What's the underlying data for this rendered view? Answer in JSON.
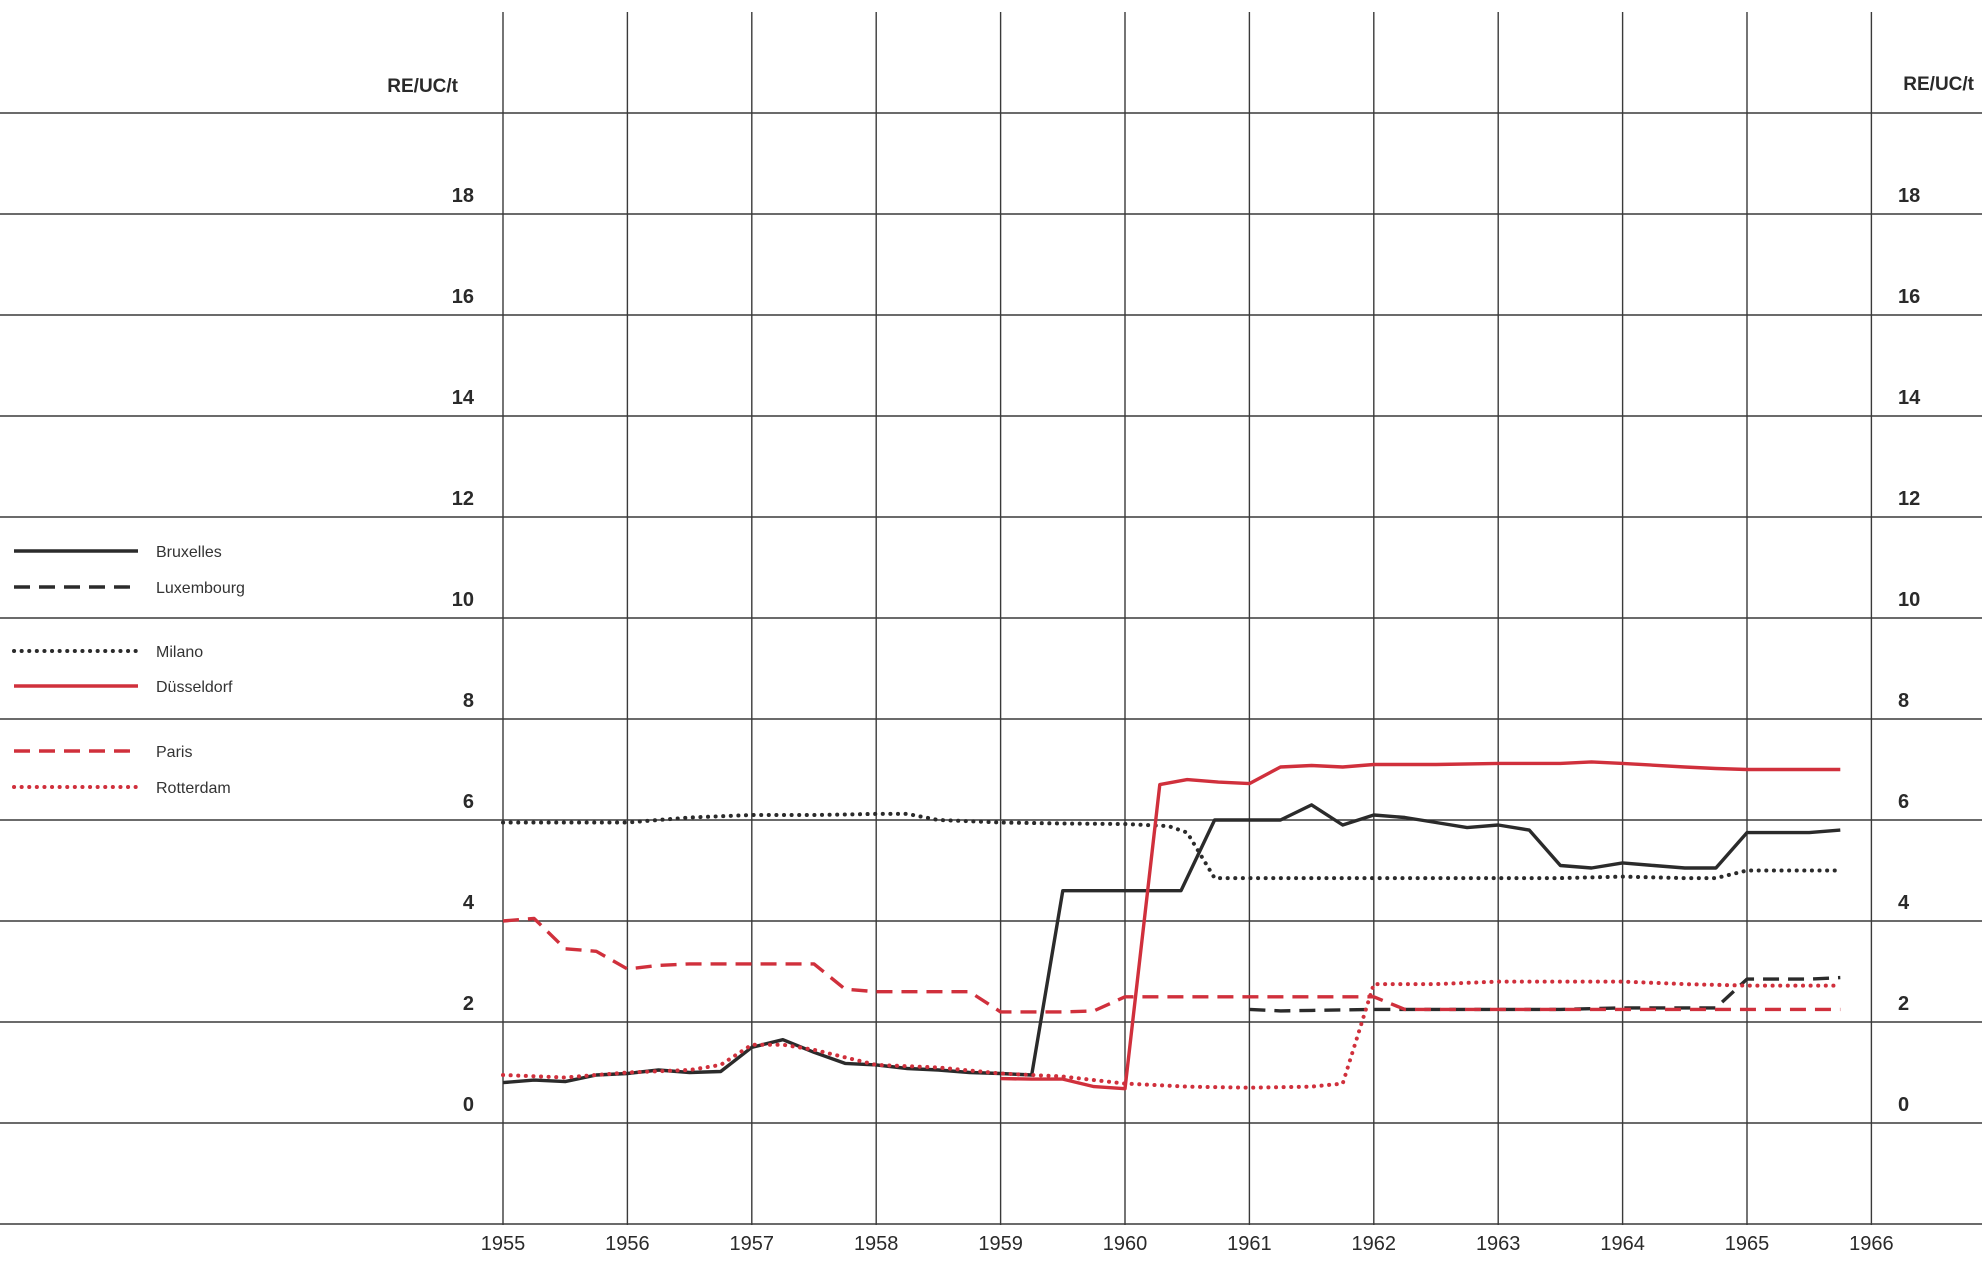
{
  "chart_data": {
    "type": "line",
    "title": "",
    "xlabel": "",
    "ylabel": "RE/UC/t",
    "ylabel_right": "RE/UC/t",
    "xlim": [
      1955,
      1966
    ],
    "ylim": [
      -2,
      20
    ],
    "x_ticks": [
      "1955",
      "1956",
      "1957",
      "1958",
      "1959",
      "1960",
      "1961",
      "1962",
      "1963",
      "1964",
      "1965",
      "1966"
    ],
    "y_ticks": [
      "0",
      "2",
      "4",
      "6",
      "8",
      "10",
      "12",
      "14",
      "16",
      "18"
    ],
    "grid": true,
    "legend_position": "left",
    "series": [
      {
        "name": "Bruxelles",
        "color": "#2b2b2b",
        "style": "solid",
        "points": [
          [
            1955.0,
            0.8
          ],
          [
            1955.25,
            0.85
          ],
          [
            1955.5,
            0.82
          ],
          [
            1955.75,
            0.95
          ],
          [
            1956.0,
            0.98
          ],
          [
            1956.25,
            1.05
          ],
          [
            1956.5,
            1.0
          ],
          [
            1956.75,
            1.02
          ],
          [
            1957.0,
            1.5
          ],
          [
            1957.25,
            1.65
          ],
          [
            1957.5,
            1.4
          ],
          [
            1957.75,
            1.18
          ],
          [
            1958.0,
            1.15
          ],
          [
            1958.25,
            1.08
          ],
          [
            1958.5,
            1.05
          ],
          [
            1958.75,
            1.0
          ],
          [
            1959.0,
            0.98
          ],
          [
            1959.25,
            0.95
          ],
          [
            1959.5,
            4.6
          ],
          [
            1959.75,
            4.6
          ],
          [
            1960.0,
            4.6
          ],
          [
            1960.45,
            4.6
          ],
          [
            1960.72,
            6.0
          ],
          [
            1961.0,
            6.0
          ],
          [
            1961.25,
            6.0
          ],
          [
            1961.5,
            6.3
          ],
          [
            1961.75,
            5.9
          ],
          [
            1962.0,
            6.1
          ],
          [
            1962.25,
            6.05
          ],
          [
            1962.5,
            5.95
          ],
          [
            1962.75,
            5.85
          ],
          [
            1963.0,
            5.9
          ],
          [
            1963.25,
            5.8
          ],
          [
            1963.5,
            5.1
          ],
          [
            1963.75,
            5.05
          ],
          [
            1964.0,
            5.15
          ],
          [
            1964.25,
            5.1
          ],
          [
            1964.5,
            5.05
          ],
          [
            1964.75,
            5.05
          ],
          [
            1965.0,
            5.75
          ],
          [
            1965.25,
            5.75
          ],
          [
            1965.5,
            5.75
          ],
          [
            1965.75,
            5.8
          ]
        ]
      },
      {
        "name": "Luxembourg",
        "color": "#2b2b2b",
        "style": "dashed",
        "points": [
          [
            1961.0,
            2.25
          ],
          [
            1961.25,
            2.22
          ],
          [
            1961.5,
            2.23
          ],
          [
            1962.0,
            2.25
          ],
          [
            1962.5,
            2.25
          ],
          [
            1963.0,
            2.25
          ],
          [
            1963.5,
            2.25
          ],
          [
            1964.0,
            2.28
          ],
          [
            1964.5,
            2.28
          ],
          [
            1964.75,
            2.28
          ],
          [
            1965.0,
            2.85
          ],
          [
            1965.5,
            2.85
          ],
          [
            1965.75,
            2.88
          ]
        ]
      },
      {
        "name": "Milano",
        "color": "#2b2b2b",
        "style": "dotted",
        "points": [
          [
            1955.0,
            5.95
          ],
          [
            1955.5,
            5.95
          ],
          [
            1956.0,
            5.95
          ],
          [
            1956.5,
            6.05
          ],
          [
            1957.0,
            6.1
          ],
          [
            1957.5,
            6.1
          ],
          [
            1958.0,
            6.12
          ],
          [
            1958.25,
            6.12
          ],
          [
            1958.5,
            6.0
          ],
          [
            1959.0,
            5.95
          ],
          [
            1959.5,
            5.93
          ],
          [
            1960.0,
            5.92
          ],
          [
            1960.35,
            5.88
          ],
          [
            1960.5,
            5.75
          ],
          [
            1960.72,
            4.85
          ],
          [
            1961.0,
            4.85
          ],
          [
            1961.5,
            4.85
          ],
          [
            1962.0,
            4.85
          ],
          [
            1962.5,
            4.85
          ],
          [
            1963.0,
            4.85
          ],
          [
            1963.5,
            4.85
          ],
          [
            1964.0,
            4.88
          ],
          [
            1964.5,
            4.85
          ],
          [
            1964.75,
            4.85
          ],
          [
            1965.0,
            5.0
          ],
          [
            1965.5,
            5.0
          ],
          [
            1965.75,
            5.0
          ]
        ]
      },
      {
        "name": "Düsseldorf",
        "color": "#d0303c",
        "style": "solid",
        "points": [
          [
            1959.0,
            0.88
          ],
          [
            1959.25,
            0.87
          ],
          [
            1959.5,
            0.87
          ],
          [
            1959.75,
            0.72
          ],
          [
            1960.0,
            0.68
          ],
          [
            1960.28,
            6.7
          ],
          [
            1960.5,
            6.8
          ],
          [
            1960.75,
            6.75
          ],
          [
            1961.0,
            6.72
          ],
          [
            1961.25,
            7.05
          ],
          [
            1961.5,
            7.08
          ],
          [
            1961.75,
            7.05
          ],
          [
            1962.0,
            7.1
          ],
          [
            1962.5,
            7.1
          ],
          [
            1963.0,
            7.12
          ],
          [
            1963.5,
            7.12
          ],
          [
            1963.75,
            7.15
          ],
          [
            1964.0,
            7.12
          ],
          [
            1964.5,
            7.05
          ],
          [
            1964.75,
            7.02
          ],
          [
            1965.0,
            7.0
          ],
          [
            1965.5,
            7.0
          ],
          [
            1965.75,
            7.0
          ]
        ]
      },
      {
        "name": "Paris",
        "color": "#d0303c",
        "style": "dashed",
        "points": [
          [
            1955.0,
            4.0
          ],
          [
            1955.25,
            4.05
          ],
          [
            1955.5,
            3.45
          ],
          [
            1955.75,
            3.4
          ],
          [
            1956.0,
            3.05
          ],
          [
            1956.25,
            3.12
          ],
          [
            1956.5,
            3.15
          ],
          [
            1957.0,
            3.15
          ],
          [
            1957.5,
            3.15
          ],
          [
            1957.75,
            2.65
          ],
          [
            1958.0,
            2.6
          ],
          [
            1958.5,
            2.6
          ],
          [
            1958.75,
            2.6
          ],
          [
            1959.0,
            2.2
          ],
          [
            1959.25,
            2.2
          ],
          [
            1959.5,
            2.2
          ],
          [
            1959.75,
            2.22
          ],
          [
            1960.0,
            2.5
          ],
          [
            1960.5,
            2.5
          ],
          [
            1961.0,
            2.5
          ],
          [
            1961.5,
            2.5
          ],
          [
            1962.0,
            2.5
          ],
          [
            1962.25,
            2.25
          ],
          [
            1962.5,
            2.25
          ],
          [
            1963.0,
            2.25
          ],
          [
            1963.5,
            2.25
          ],
          [
            1964.0,
            2.25
          ],
          [
            1964.5,
            2.25
          ],
          [
            1965.0,
            2.25
          ],
          [
            1965.5,
            2.25
          ],
          [
            1965.75,
            2.25
          ]
        ]
      },
      {
        "name": "Rotterdam",
        "color": "#d0303c",
        "style": "dotted",
        "points": [
          [
            1955.0,
            0.95
          ],
          [
            1955.5,
            0.9
          ],
          [
            1956.0,
            1.0
          ],
          [
            1956.5,
            1.05
          ],
          [
            1956.75,
            1.15
          ],
          [
            1957.0,
            1.55
          ],
          [
            1957.25,
            1.55
          ],
          [
            1957.5,
            1.45
          ],
          [
            1958.0,
            1.15
          ],
          [
            1958.5,
            1.1
          ],
          [
            1959.0,
            0.98
          ],
          [
            1959.5,
            0.92
          ],
          [
            1960.0,
            0.78
          ],
          [
            1960.5,
            0.72
          ],
          [
            1961.0,
            0.7
          ],
          [
            1961.5,
            0.72
          ],
          [
            1961.75,
            0.78
          ],
          [
            1962.0,
            2.75
          ],
          [
            1962.5,
            2.75
          ],
          [
            1963.0,
            2.8
          ],
          [
            1963.5,
            2.8
          ],
          [
            1964.0,
            2.8
          ],
          [
            1964.5,
            2.75
          ],
          [
            1965.0,
            2.72
          ],
          [
            1965.5,
            2.72
          ],
          [
            1965.75,
            2.72
          ]
        ]
      }
    ]
  }
}
